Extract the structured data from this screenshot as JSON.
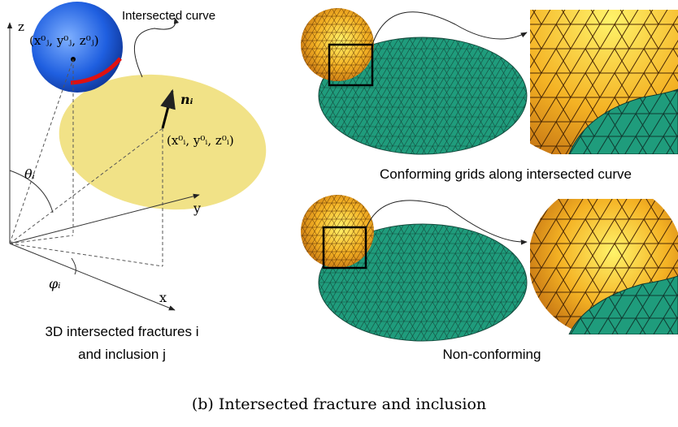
{
  "left_panel": {
    "curve_label": "Intersected curve",
    "axis_z": "z",
    "axis_y": "y",
    "axis_x": "x",
    "inclusion_center": "(x⁰ⱼ, y⁰ⱼ, z⁰ⱼ)",
    "normal": "nᵢ",
    "fracture_center": "(x⁰ᵢ, y⁰ᵢ, z⁰ᵢ)",
    "theta": "θᵢ",
    "phi": "φᵢ",
    "caption_line1": "3D intersected fractures i",
    "caption_line2": "and inclusion j"
  },
  "right_panel": {
    "top_caption": "Conforming grids along intersected curve",
    "bottom_caption": "Non-conforming"
  },
  "figure_caption": "(b) Intersected fracture and inclusion"
}
